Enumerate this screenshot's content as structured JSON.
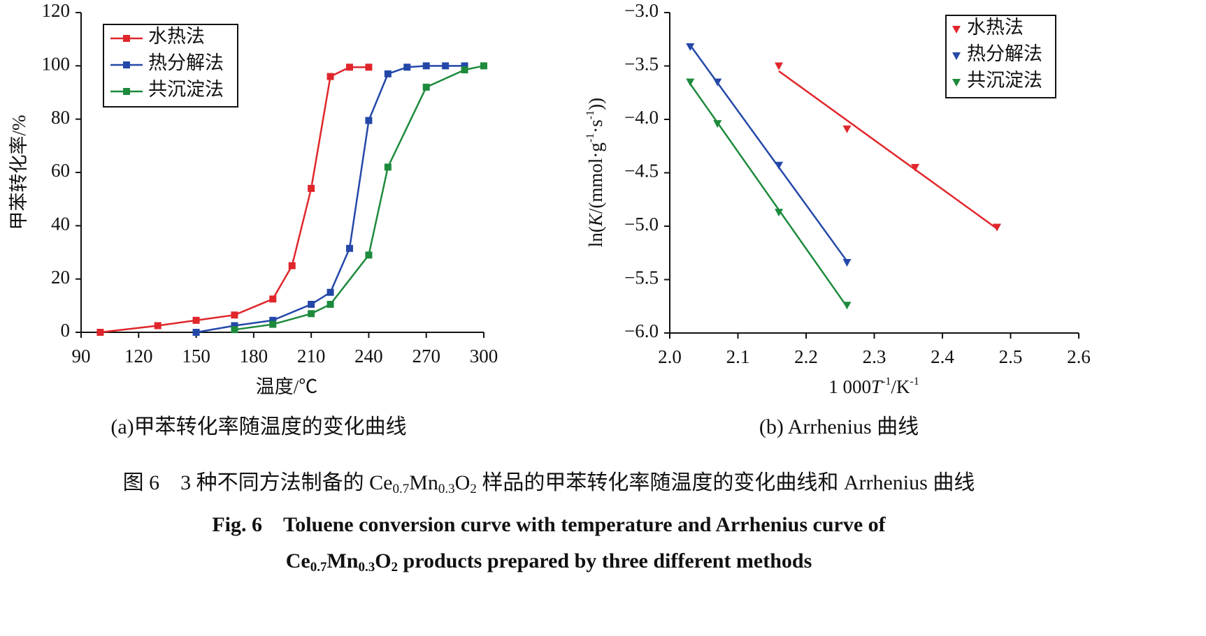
{
  "chart_data": [
    {
      "type": "line",
      "caption": "(a)甲苯转化率随温度的变化曲线",
      "xlabel": "温度/℃",
      "ylabel": "甲苯转化率/%",
      "xlim": [
        90,
        300
      ],
      "xticks": [
        90,
        120,
        150,
        180,
        210,
        240,
        270,
        300
      ],
      "ylim": [
        0,
        120
      ],
      "yticks": [
        0,
        20,
        40,
        60,
        80,
        100,
        120
      ],
      "legend": "upper left",
      "series": [
        {
          "name": "水热法",
          "color": "#e0262b",
          "x": [
            100,
            130,
            150,
            170,
            190,
            200,
            210,
            220,
            230,
            240
          ],
          "values": [
            0,
            2.5,
            4.5,
            6.5,
            12.5,
            25,
            54,
            96,
            99.5,
            99.5
          ]
        },
        {
          "name": "热分解法",
          "color": "#2448a8",
          "x": [
            150,
            170,
            190,
            210,
            220,
            230,
            240,
            250,
            260,
            270,
            280,
            290
          ],
          "values": [
            0,
            2.5,
            4.5,
            10.5,
            15,
            31.5,
            79.5,
            97,
            99.5,
            100,
            100,
            100
          ]
        },
        {
          "name": "共沉淀法",
          "color": "#1d8a3c",
          "x": [
            170,
            190,
            210,
            220,
            240,
            250,
            270,
            290,
            300
          ],
          "values": [
            1,
            3,
            7,
            10.5,
            29,
            62,
            92,
            98.5,
            100
          ]
        }
      ]
    },
    {
      "type": "scatter",
      "caption": "(b) Arrhenius 曲线",
      "xlabel": [
        "1 000",
        "T",
        "-1",
        "/K",
        "-1"
      ],
      "ylabel": [
        "ln(",
        "K",
        "/(mmol·g",
        "-1",
        "·s",
        "-1",
        "))"
      ],
      "xlim": [
        2.0,
        2.6
      ],
      "xticks": [
        {
          "value": 2.0,
          "label": "2.0"
        },
        2.1,
        2.2,
        2.3,
        2.4,
        2.5,
        2.6
      ],
      "ylim": [
        -6.0,
        -3.0
      ],
      "yticks": [
        {
          "value": -6.0,
          "label": "−6.0"
        },
        {
          "value": -5.5,
          "label": "−5.5"
        },
        {
          "value": -5.0,
          "label": "−5.0"
        },
        {
          "value": -4.5,
          "label": "−4.5"
        },
        {
          "value": -4.0,
          "label": "−4.0"
        },
        {
          "value": -3.5,
          "label": "−3.5"
        },
        {
          "value": -3.0,
          "label": "−3.0"
        }
      ],
      "legend": "upper right",
      "trendline": "linear",
      "series": [
        {
          "name": "水热法",
          "color": "#e0262b",
          "x": [
            2.16,
            2.26,
            2.36,
            2.48
          ],
          "values": [
            -3.5,
            -4.09,
            -4.45,
            -5.01
          ]
        },
        {
          "name": "热分解法",
          "color": "#2448a8",
          "x": [
            2.03,
            2.07,
            2.16,
            2.26
          ],
          "values": [
            -3.32,
            -3.65,
            -4.43,
            -5.34
          ]
        },
        {
          "name": "共沉淀法",
          "color": "#1d8a3c",
          "x": [
            2.03,
            2.07,
            2.16,
            2.26
          ],
          "values": [
            -3.65,
            -4.04,
            -4.87,
            -5.74
          ]
        }
      ]
    }
  ],
  "figure_caption": {
    "zh": [
      "图 6　3 种不同方法制备的 Ce",
      "0.7",
      "Mn",
      "0.3",
      "O",
      "2",
      " 样品的甲苯转化率随温度的变化曲线和 Arrhenius 曲线"
    ],
    "en_line1": "Fig. 6　Toluene conversion curve with temperature and Arrhenius curve of",
    "en_line2": [
      "Ce",
      "0.7",
      "Mn",
      "0.3",
      "O",
      "2",
      " products prepared by three different methods"
    ]
  }
}
